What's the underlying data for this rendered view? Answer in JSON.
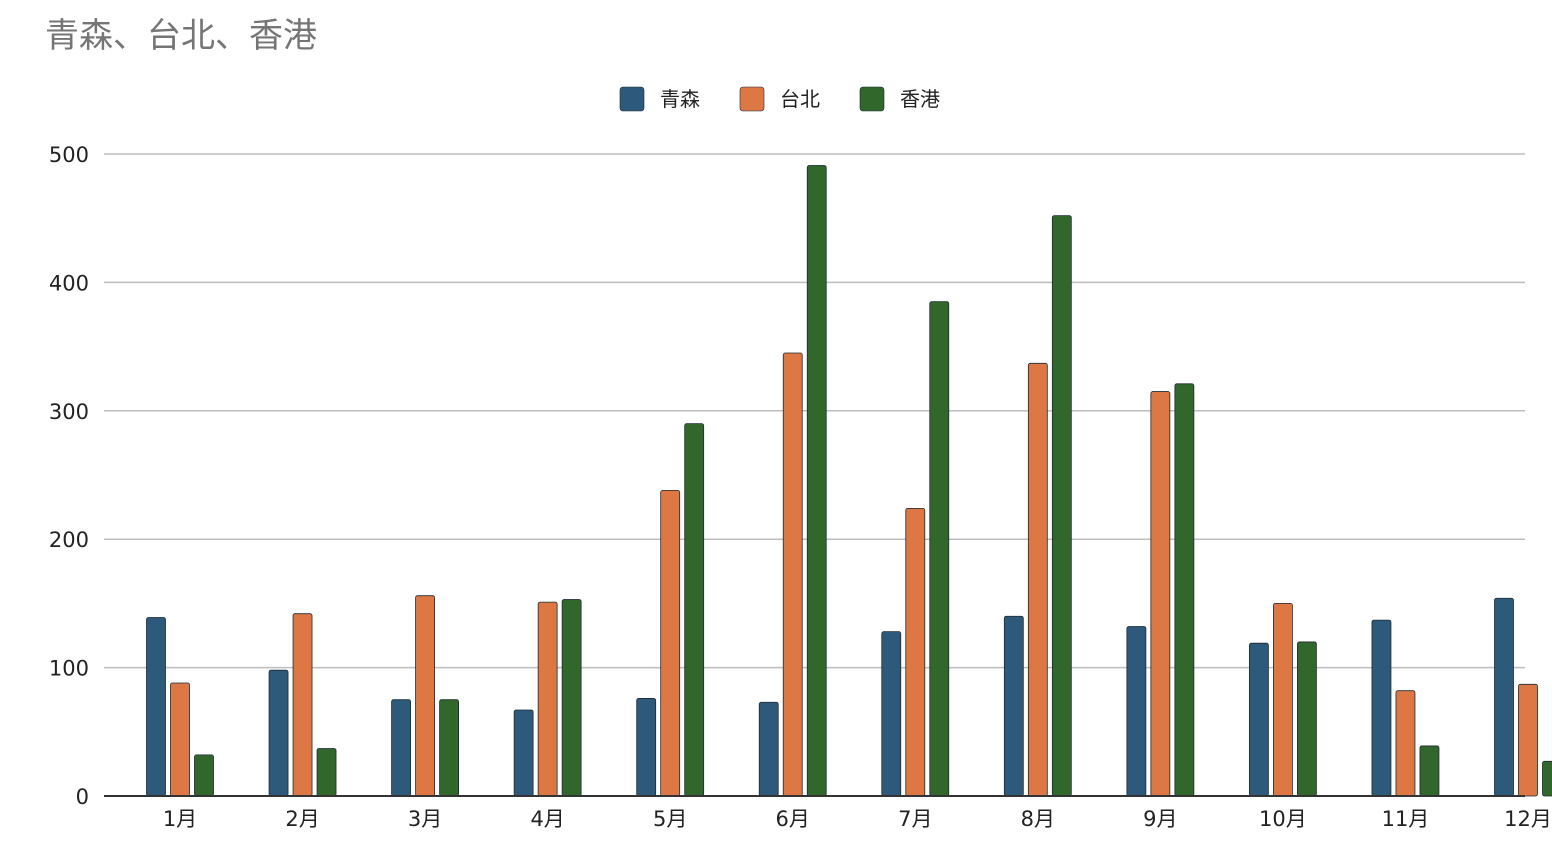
{
  "chart_data": {
    "type": "bar",
    "title": "青森、台北、香港",
    "xlabel": "",
    "ylabel": "",
    "ylim": [
      0,
      500
    ],
    "yticks": [
      0,
      100,
      200,
      300,
      400,
      500
    ],
    "grid": true,
    "legend_position": "top-center",
    "categories": [
      "1月",
      "2月",
      "3月",
      "4月",
      "5月",
      "6月",
      "7月",
      "8月",
      "9月",
      "10月",
      "11月",
      "12月"
    ],
    "series": [
      {
        "name": "青森",
        "color": "#2d5a7b",
        "values": [
          139,
          98,
          75,
          67,
          76,
          73,
          128,
          140,
          132,
          119,
          137,
          154
        ]
      },
      {
        "name": "台北",
        "color": "#dd7844",
        "values": [
          88,
          142,
          156,
          151,
          238,
          345,
          224,
          337,
          315,
          150,
          82,
          87
        ]
      },
      {
        "name": "香港",
        "color": "#32672c",
        "values": [
          32,
          37,
          75,
          153,
          290,
          491,
          385,
          452,
          321,
          120,
          39,
          27
        ]
      }
    ]
  }
}
